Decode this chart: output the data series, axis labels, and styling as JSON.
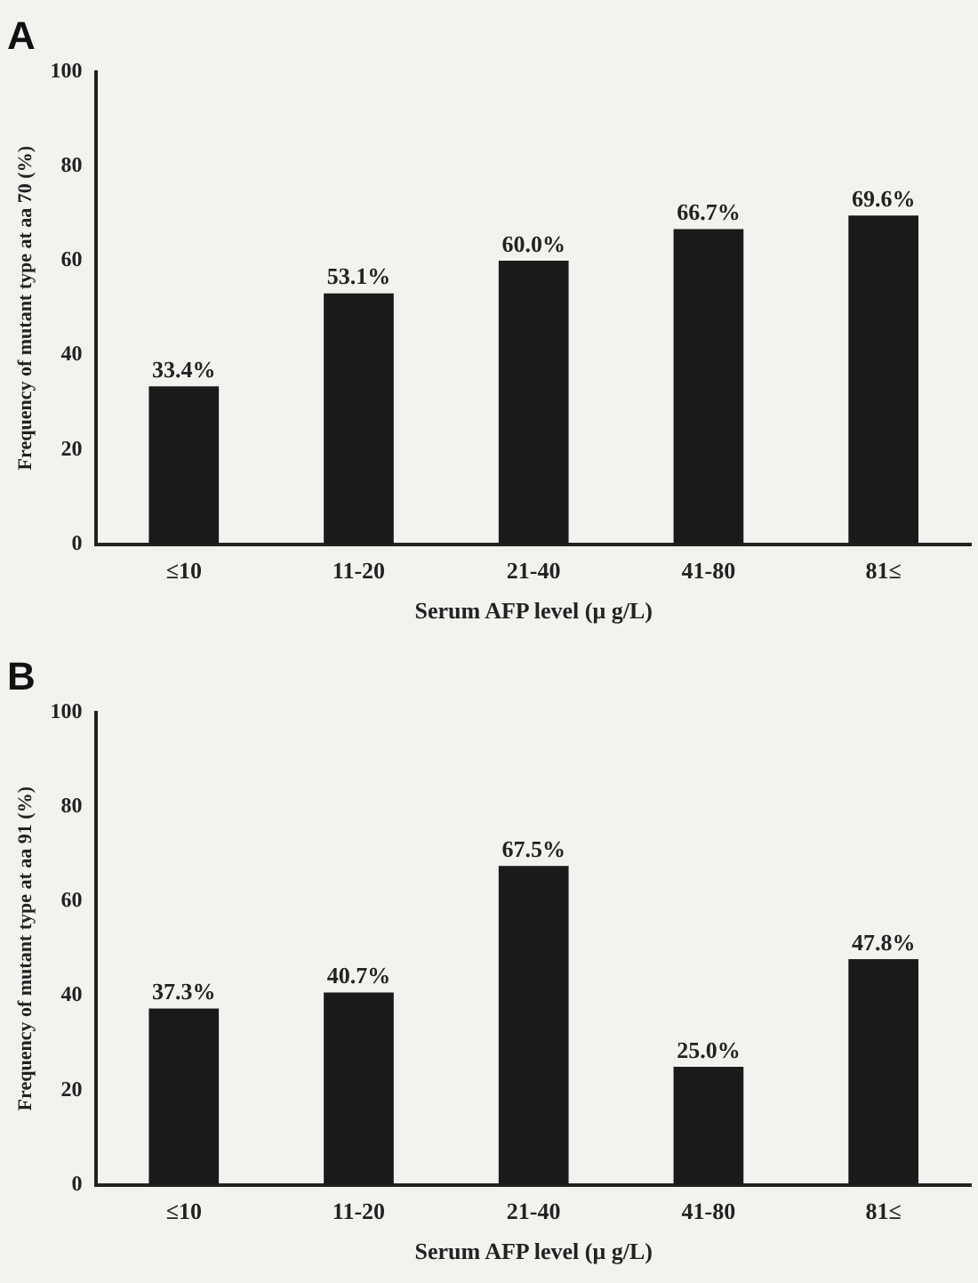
{
  "chart_data": [
    {
      "type": "bar",
      "title": "A",
      "xlabel": "Serum AFP level (μ g/L)",
      "ylabel": "Frequency of mutant type at aa 70 (%)",
      "categories": [
        "≤10",
        "11-20",
        "21-40",
        "41-80",
        "81≤"
      ],
      "values": [
        33.4,
        53.1,
        60.0,
        66.7,
        69.6
      ],
      "value_labels": [
        "33.4%",
        "53.1%",
        "60.0%",
        "66.7%",
        "69.6%"
      ],
      "color": "#1a1a1a",
      "ylim": [
        0,
        100
      ],
      "yticks": [
        0,
        20,
        40,
        60,
        80,
        100
      ],
      "grid": false,
      "legend": false
    },
    {
      "type": "bar",
      "title": "B",
      "xlabel": "Serum AFP level (μ g/L)",
      "ylabel": "Frequency of mutant type at aa 91 (%)",
      "categories": [
        "≤10",
        "11-20",
        "21-40",
        "41-80",
        "81≤"
      ],
      "values": [
        37.3,
        40.7,
        67.5,
        25.0,
        47.8
      ],
      "value_labels": [
        "37.3%",
        "40.7%",
        "67.5%",
        "25.0%",
        "47.8%"
      ],
      "color": "#1a1a1a",
      "ylim": [
        0,
        100
      ],
      "yticks": [
        0,
        20,
        40,
        60,
        80,
        100
      ],
      "grid": false,
      "legend": false
    }
  ]
}
